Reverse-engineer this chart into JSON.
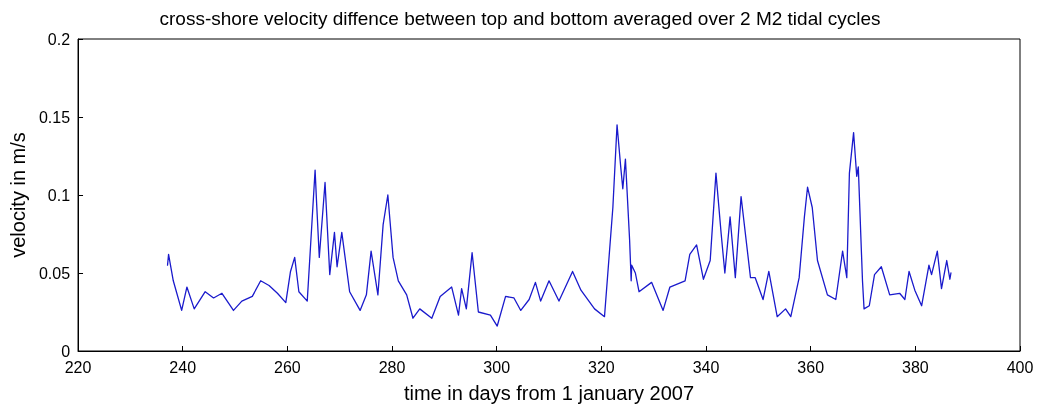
{
  "chart_data": {
    "type": "line",
    "title": "cross-shore velocity diffence between top and bottom averaged over 2 M2 tidal cycles",
    "xlabel": "time in days from 1 january 2007",
    "ylabel": "velocity in m/s",
    "series": [
      {
        "color": "#1a1acc",
        "x": [
          237.1,
          237.3,
          238.2,
          239.8,
          240.8,
          242.2,
          244.3,
          245.9,
          247.5,
          249.7,
          251.3,
          253.3,
          254.9,
          256.5,
          258.1,
          259.7,
          260.6,
          261.4,
          262.2,
          263.8,
          265.3,
          265.6,
          266.1,
          267.2,
          268.1,
          269.0,
          269.5,
          270.4,
          271.9,
          273.9,
          275.1,
          276.0,
          277.3,
          278.3,
          279.2,
          280.2,
          281.2,
          282.8,
          284.0,
          285.3,
          287.6,
          289.2,
          291.4,
          292.7,
          293.3,
          294.2,
          295.3,
          296.5,
          298.8,
          300.1,
          301.7,
          303.3,
          304.6,
          306.2,
          307.4,
          308.4,
          310.0,
          311.9,
          314.5,
          316.1,
          318.7,
          320.6,
          322.2,
          323.0,
          323.7,
          324.1,
          324.6,
          325.4,
          325.7,
          325.8,
          326.5,
          327.2,
          329.6,
          331.8,
          333.1,
          336.0,
          336.9,
          338.2,
          339.5,
          340.8,
          341.9,
          342.9,
          343.6,
          344.6,
          345.6,
          346.7,
          348.5,
          349.4,
          350.9,
          352.0,
          353.6,
          355.2,
          356.2,
          357.8,
          358.8,
          359.4,
          360.3,
          361.3,
          363.2,
          364.8,
          366.1,
          366.9,
          367.4,
          368.2,
          368.8,
          369.1,
          369.9,
          370.2,
          371.2,
          372.2,
          373.5,
          375.1,
          377.0,
          378.0,
          378.8,
          379.9,
          381.2,
          382.6,
          383.1,
          384.2,
          385.0,
          386.0,
          386.6,
          386.8
        ],
        "values": [
          0.055,
          0.062,
          0.045,
          0.026,
          0.041,
          0.027,
          0.038,
          0.034,
          0.037,
          0.026,
          0.032,
          0.035,
          0.045,
          0.042,
          0.037,
          0.031,
          0.051,
          0.06,
          0.038,
          0.032,
          0.116,
          0.094,
          0.06,
          0.108,
          0.049,
          0.076,
          0.054,
          0.076,
          0.038,
          0.026,
          0.036,
          0.064,
          0.036,
          0.081,
          0.1,
          0.06,
          0.045,
          0.036,
          0.021,
          0.027,
          0.021,
          0.035,
          0.041,
          0.023,
          0.04,
          0.027,
          0.063,
          0.025,
          0.023,
          0.016,
          0.035,
          0.034,
          0.026,
          0.033,
          0.044,
          0.032,
          0.045,
          0.032,
          0.051,
          0.039,
          0.027,
          0.022,
          0.092,
          0.145,
          0.118,
          0.104,
          0.123,
          0.071,
          0.045,
          0.055,
          0.05,
          0.038,
          0.044,
          0.026,
          0.041,
          0.045,
          0.062,
          0.068,
          0.046,
          0.058,
          0.114,
          0.075,
          0.05,
          0.086,
          0.047,
          0.099,
          0.047,
          0.047,
          0.033,
          0.051,
          0.022,
          0.027,
          0.022,
          0.047,
          0.086,
          0.105,
          0.092,
          0.058,
          0.036,
          0.033,
          0.064,
          0.047,
          0.114,
          0.14,
          0.112,
          0.118,
          0.045,
          0.027,
          0.029,
          0.049,
          0.054,
          0.036,
          0.037,
          0.033,
          0.051,
          0.039,
          0.029,
          0.055,
          0.049,
          0.064,
          0.04,
          0.058,
          0.046,
          0.05
        ]
      }
    ],
    "xlim": [
      220,
      400
    ],
    "xticks": [
      220,
      240,
      260,
      280,
      300,
      320,
      340,
      360,
      380,
      400
    ],
    "ylim": [
      0,
      0.2
    ],
    "yticks": [
      0,
      0.05,
      0.1,
      0.15,
      0.2
    ],
    "grid": false,
    "marker": "none",
    "line_style": "solid"
  }
}
